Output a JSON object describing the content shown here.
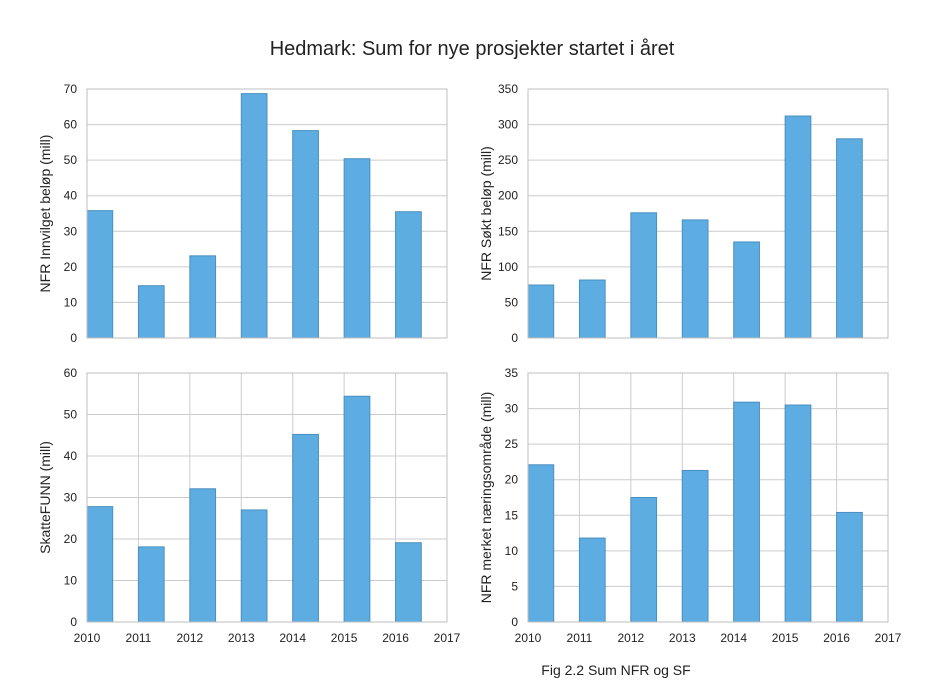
{
  "figure": {
    "title": "Hedmark: Sum for nye prosjekter startet i året",
    "caption": "Fig 2.2 Sum NFR og SF",
    "bar_color": "#5DADE2",
    "bar_edge_color": "#4a8fc0",
    "grid_color": "#cccccc",
    "frame_color": "#bfbfbf"
  },
  "chart_data": [
    {
      "type": "bar",
      "ylabel": "NFR Innvilget beløp (mill)",
      "x": [
        2010,
        2011,
        2012,
        2013,
        2014,
        2015,
        2016
      ],
      "values": [
        35.8,
        14.7,
        23.1,
        68.7,
        58.3,
        50.4,
        35.5
      ],
      "xlim": [
        2010,
        2017
      ],
      "ylim": [
        0,
        70
      ],
      "yticks": [
        0,
        10,
        20,
        30,
        40,
        50,
        60,
        70
      ],
      "xticks": [],
      "grid": true
    },
    {
      "type": "bar",
      "ylabel": "NFR Søkt beløp (mill)",
      "x": [
        2010,
        2011,
        2012,
        2013,
        2014,
        2015,
        2016
      ],
      "values": [
        74.5,
        81.5,
        176,
        166,
        135,
        312,
        280
      ],
      "xlim": [
        2010,
        2017
      ],
      "ylim": [
        0,
        350
      ],
      "yticks": [
        0,
        50,
        100,
        150,
        200,
        250,
        300,
        350
      ],
      "xticks": [],
      "grid": true
    },
    {
      "type": "bar",
      "ylabel": "SkatteFUNN (mill)",
      "x": [
        2010,
        2011,
        2012,
        2013,
        2014,
        2015,
        2016
      ],
      "values": [
        27.8,
        18.1,
        32.1,
        27.0,
        45.2,
        54.4,
        19.1
      ],
      "xlim": [
        2010,
        2017
      ],
      "ylim": [
        0,
        60
      ],
      "yticks": [
        0,
        10,
        20,
        30,
        40,
        50,
        60
      ],
      "xticks": [
        2010,
        2011,
        2012,
        2013,
        2014,
        2015,
        2016,
        2017
      ],
      "grid": true
    },
    {
      "type": "bar",
      "ylabel": "NFR merket næringsområde (mill)",
      "x": [
        2010,
        2011,
        2012,
        2013,
        2014,
        2015,
        2016
      ],
      "values": [
        22.1,
        11.8,
        17.5,
        21.3,
        30.9,
        30.5,
        15.4
      ],
      "xlim": [
        2010,
        2017
      ],
      "ylim": [
        0,
        35
      ],
      "yticks": [
        0,
        5,
        10,
        15,
        20,
        25,
        30,
        35
      ],
      "xticks": [
        2010,
        2011,
        2012,
        2013,
        2014,
        2015,
        2016,
        2017
      ],
      "grid": true
    }
  ]
}
